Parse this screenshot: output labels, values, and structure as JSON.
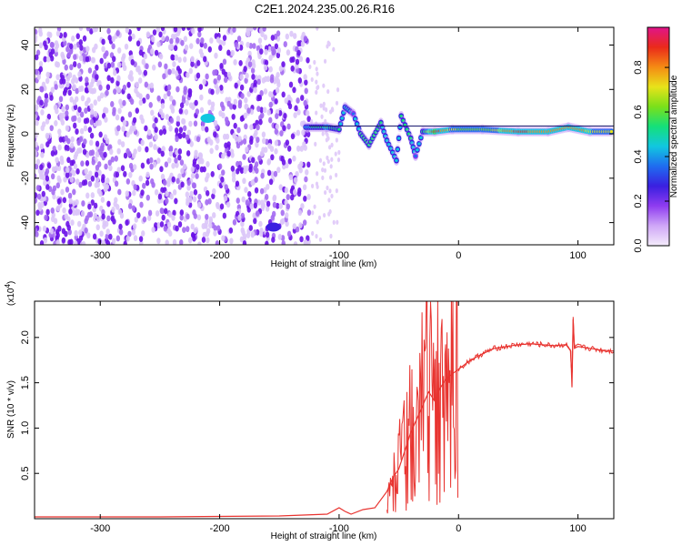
{
  "title": "C2E1.2024.235.00.26.R16",
  "colors": {
    "snr_line": "#e8332f",
    "spectro_noise": "#6a11e8",
    "axis": "#000000"
  },
  "chart_data": [
    {
      "type": "heatmap",
      "name_id": "spectrogram",
      "xlabel": "Height of straight line (km)",
      "ylabel": "Frequency (Hz)",
      "xlim": [
        -355,
        130
      ],
      "ylim": [
        -50,
        48
      ],
      "x_ticks": [
        -300,
        -200,
        -100,
        0,
        100
      ],
      "y_ticks": [
        -40,
        -20,
        0,
        20,
        40
      ],
      "colorbar": {
        "label": "Normalized spectral amplitude",
        "range": [
          0.0,
          0.98
        ],
        "ticks": [
          "0.0",
          "0.2",
          "0.4",
          "0.6",
          "0.8"
        ],
        "colormap": [
          "#f4ecfb",
          "#cfa7f7",
          "#8f3cf0",
          "#3a1fe0",
          "#1f6cf0",
          "#11c7e0",
          "#14e07a",
          "#7ae01a",
          "#e8e31a",
          "#f58a14",
          "#ea2a1a",
          "#e0148a"
        ]
      },
      "noise_region": {
        "x_from": -355,
        "x_to": -125,
        "amplitude": 0.15
      },
      "signal_track": [
        {
          "x": -128,
          "y": 3,
          "a": 0.45
        },
        {
          "x": -110,
          "y": 3,
          "a": 0.6
        },
        {
          "x": -100,
          "y": 2,
          "a": 0.5
        },
        {
          "x": -95,
          "y": 12,
          "a": 0.45
        },
        {
          "x": -88,
          "y": 9,
          "a": 0.4
        },
        {
          "x": -82,
          "y": 0,
          "a": 0.5
        },
        {
          "x": -75,
          "y": -5,
          "a": 0.55
        },
        {
          "x": -65,
          "y": 5,
          "a": 0.5
        },
        {
          "x": -60,
          "y": -3,
          "a": 0.45
        },
        {
          "x": -52,
          "y": -12,
          "a": 0.45
        },
        {
          "x": -48,
          "y": 8,
          "a": 0.5
        },
        {
          "x": -40,
          "y": -2,
          "a": 0.5
        },
        {
          "x": -36,
          "y": -10,
          "a": 0.4
        },
        {
          "x": -30,
          "y": 1,
          "a": 0.5
        },
        {
          "x": -20,
          "y": 1,
          "a": 0.95
        },
        {
          "x": -5,
          "y": 2,
          "a": 0.7
        },
        {
          "x": 20,
          "y": 2,
          "a": 0.6
        },
        {
          "x": 50,
          "y": 1,
          "a": 0.9
        },
        {
          "x": 75,
          "y": 1,
          "a": 0.8
        },
        {
          "x": 92,
          "y": 3,
          "a": 0.85
        },
        {
          "x": 110,
          "y": 1,
          "a": 0.75
        },
        {
          "x": 128,
          "y": 1,
          "a": 0.7
        }
      ],
      "extra_blobs": [
        {
          "x": -210,
          "y": 7,
          "a": 0.45
        },
        {
          "x": -155,
          "y": -42,
          "a": 0.3
        }
      ]
    },
    {
      "type": "line",
      "name_id": "snr",
      "xlabel": "Height of straight line (km)",
      "ylabel": "SNR (10 * v/v)",
      "exponent_label": "(x10",
      "exponent_power": "4",
      "exponent_close": ")",
      "xlim": [
        -355,
        130
      ],
      "ylim": [
        0,
        2.4
      ],
      "x_ticks": [
        -300,
        -200,
        -100,
        0,
        100
      ],
      "y_ticks": [
        "0.5",
        "1.0",
        "1.5",
        "2.0"
      ],
      "series": [
        {
          "x": [
            -355,
            -250,
            -150,
            -110,
            -100,
            -95,
            -90,
            -80,
            -70,
            -60,
            -55,
            -50,
            -45,
            -40,
            -35,
            -30,
            -25,
            -20,
            -15,
            -10,
            -5,
            0,
            5,
            10,
            20,
            30,
            40,
            50,
            60,
            70,
            80,
            90,
            94,
            95,
            96,
            97,
            100,
            110,
            120,
            130
          ],
          "y": [
            0.02,
            0.02,
            0.03,
            0.05,
            0.12,
            0.08,
            0.05,
            0.1,
            0.12,
            0.3,
            0.45,
            0.55,
            0.75,
            0.95,
            1.1,
            1.25,
            1.4,
            1.3,
            1.45,
            1.55,
            1.6,
            1.65,
            1.7,
            1.75,
            1.82,
            1.88,
            1.9,
            1.92,
            1.93,
            1.92,
            1.91,
            1.92,
            1.85,
            1.45,
            2.2,
            1.88,
            1.9,
            1.88,
            1.86,
            1.85
          ]
        }
      ]
    }
  ]
}
